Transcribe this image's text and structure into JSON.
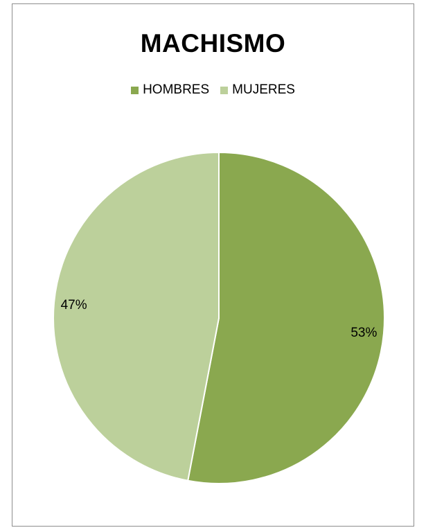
{
  "chart_data": {
    "type": "pie",
    "title": "MACHISMO",
    "categories": [
      "HOMBRES",
      "MUJERES"
    ],
    "values": [
      53,
      47
    ],
    "labels": [
      "53%",
      "47%"
    ],
    "colors": [
      "#8aa84f",
      "#bcd09b"
    ],
    "legend": "top",
    "start_angle_deg": 0,
    "direction": "clockwise"
  }
}
